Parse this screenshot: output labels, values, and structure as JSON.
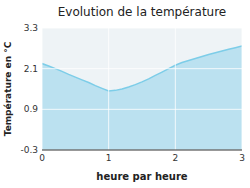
{
  "chart_data": {
    "type": "area",
    "title": "Evolution de la température",
    "xlabel": "heure par heure",
    "ylabel": "Température en °C",
    "x": [
      0,
      0.1,
      0.2,
      0.3,
      0.4,
      0.5,
      0.6,
      0.7,
      0.8,
      0.9,
      1.0,
      1.1,
      1.2,
      1.3,
      1.4,
      1.5,
      1.6,
      1.7,
      1.8,
      1.9,
      2.0,
      2.1,
      2.2,
      2.3,
      2.4,
      2.5,
      2.6,
      2.7,
      2.8,
      2.9,
      3.0
    ],
    "values": [
      2.25,
      2.18,
      2.1,
      2.02,
      1.93,
      1.85,
      1.77,
      1.69,
      1.6,
      1.52,
      1.44,
      1.46,
      1.5,
      1.56,
      1.63,
      1.71,
      1.8,
      1.9,
      2.0,
      2.1,
      2.2,
      2.28,
      2.34,
      2.4,
      2.46,
      2.52,
      2.57,
      2.62,
      2.67,
      2.72,
      2.77
    ],
    "color": "#7dcde8",
    "xlim": [
      0,
      3
    ],
    "ylim": [
      -0.3,
      3.3
    ],
    "xticks": [
      0,
      1,
      2,
      3
    ],
    "yticks": [
      -0.3,
      0.9,
      2.1,
      3.3
    ],
    "grid": true
  }
}
